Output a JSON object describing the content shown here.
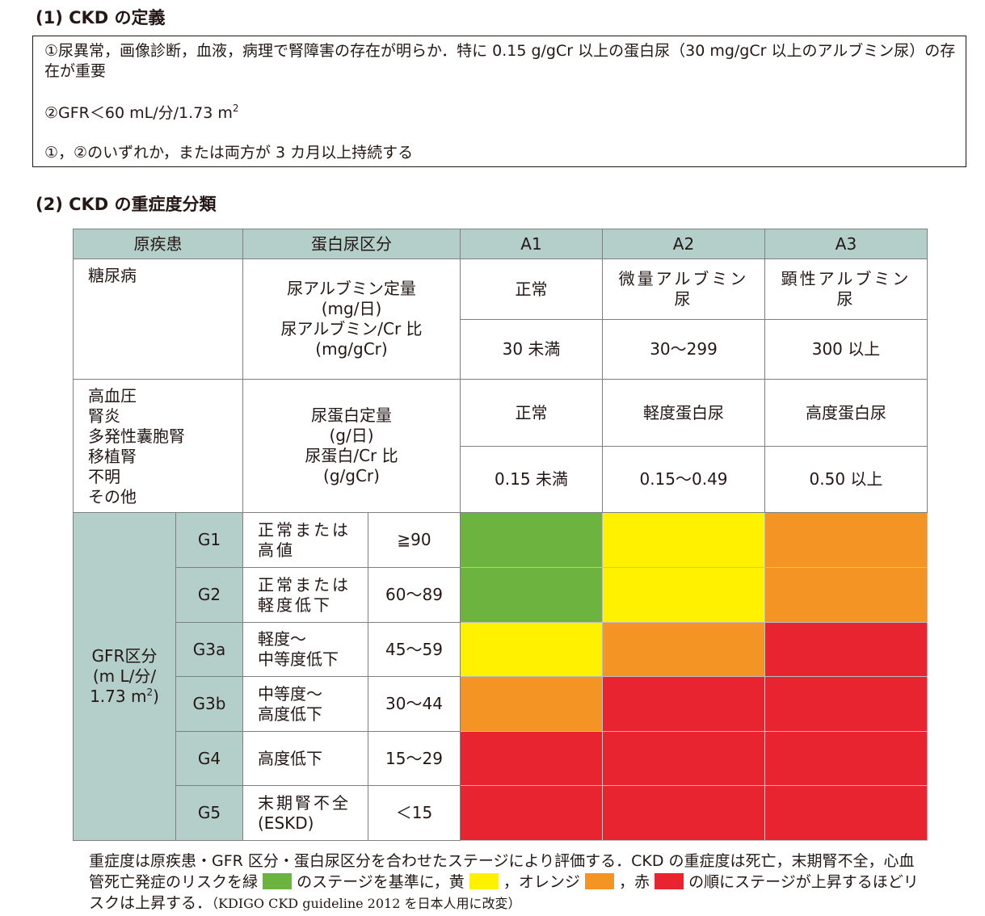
{
  "section1": {
    "title": "(1) CKD の定義",
    "item1": "①尿異常，画像診断，血液，病理で腎障害の存在が明らか．特に 0.15 g/gCr 以上の蛋白尿（30 mg/gCr 以上のアルブミン尿）の存在が重要",
    "item2_main": "②GFR＜60 mL/分/1.73 m",
    "item2_sup": "2",
    "item3": "①，②のいずれか，または両方が 3 カ月以上持続する"
  },
  "section2": {
    "title": "(2) CKD の重症度分類",
    "header": {
      "cause": "原疾患",
      "protein_category": "蛋白尿区分",
      "a1": "A1",
      "a2": "A2",
      "a3": "A3"
    },
    "diabetes": {
      "cause": "糖尿病",
      "measure_lines": [
        "尿アルブミン定量",
        "(mg/日)",
        "尿アルブミン/Cr 比",
        "(mg/gCr)"
      ],
      "a1_label": "正常",
      "a2_label_lines": [
        "微量アルブミン",
        "尿"
      ],
      "a3_label_lines": [
        "顕性アルブミン",
        "尿"
      ],
      "a1_value": "30 未満",
      "a2_value": "30〜299",
      "a3_value": "300 以上"
    },
    "other": {
      "causes": [
        "高血圧",
        "腎炎",
        "多発性囊胞腎",
        "移植腎",
        "不明",
        "その他"
      ],
      "measure_lines": [
        "尿蛋白定量",
        "(g/日)",
        "尿蛋白/Cr 比",
        "(g/gCr)"
      ],
      "a1_label": "正常",
      "a2_label": "軽度蛋白尿",
      "a3_label": "高度蛋白尿",
      "a1_value": "0.15 未満",
      "a2_value": "0.15〜0.49",
      "a3_value": "0.50 以上"
    },
    "gfr": {
      "label_lines": [
        "GFR区分",
        "(m L/分/",
        "1.73 m"
      ],
      "label_sup": "2",
      "label_tail": ")",
      "rows": [
        {
          "code": "G1",
          "desc_lines": [
            "正常または",
            "高値"
          ],
          "range": "≧90",
          "colors": [
            "green",
            "yellow",
            "orange"
          ]
        },
        {
          "code": "G2",
          "desc_lines": [
            "正常または",
            "軽度低下"
          ],
          "range": "60〜89",
          "colors": [
            "green",
            "yellow",
            "orange"
          ]
        },
        {
          "code": "G3a",
          "desc_lines": [
            "軽度〜",
            "中等度低下"
          ],
          "range": "45〜59",
          "colors": [
            "yellow",
            "orange",
            "red"
          ]
        },
        {
          "code": "G3b",
          "desc_lines": [
            "中等度〜",
            "高度低下"
          ],
          "range": "30〜44",
          "colors": [
            "orange",
            "red",
            "red"
          ]
        },
        {
          "code": "G4",
          "desc_lines": [
            "高度低下"
          ],
          "range": "15〜29",
          "colors": [
            "red",
            "red",
            "red"
          ]
        },
        {
          "code": "G5",
          "desc_lines": [
            "末期腎不全",
            "(ESKD)"
          ],
          "range": "＜15",
          "colors": [
            "red",
            "red",
            "red"
          ]
        }
      ]
    },
    "caption": {
      "part1": "重症度は原疾患・GFR 区分・蛋白尿区分を合わせたステージにより評価する．CKD の重症度は死亡，末期腎不全，心血管死亡発症のリスクを緑",
      "part2": "のステージを基準に，黄",
      "part3": "，オレンジ",
      "part4": "，赤",
      "part5": "の順にステージが上昇するほどリスクは上昇する．",
      "source": "（KDIGO CKD guideline 2012 を日本人用に改変）"
    },
    "colors": {
      "green": "#6db33f",
      "yellow": "#fff100",
      "orange": "#f39424",
      "red": "#e72430",
      "header_bg": "#b4cfc9"
    }
  }
}
